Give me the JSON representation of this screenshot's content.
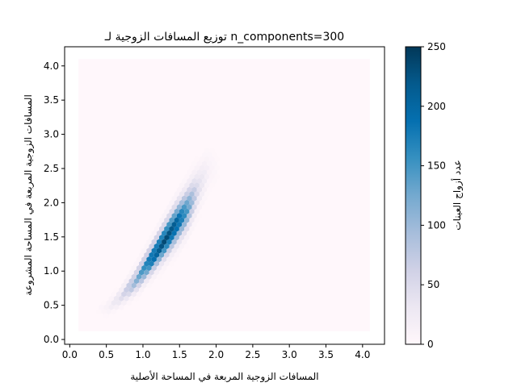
{
  "chart_data": {
    "type": "heatmap",
    "subtype": "hexbin",
    "title": "توزيع المسافات الزوجية لـ n_components=300",
    "xlabel": "المسافات الزوجية المربعة في المساحة الأصلية",
    "ylabel": "المسافات الزوجية المربعة في المساحة المشروعة",
    "xlim": [
      -0.07,
      4.3
    ],
    "ylim": [
      -0.07,
      4.28
    ],
    "x_ticks": [
      "0.0",
      "0.5",
      "1.0",
      "1.5",
      "2.0",
      "2.5",
      "3.0",
      "3.5",
      "4.0"
    ],
    "y_ticks": [
      "0.0",
      "0.5",
      "1.0",
      "1.5",
      "2.0",
      "2.5",
      "3.0",
      "3.5",
      "4.0"
    ],
    "data_extent": {
      "x": [
        0.12,
        4.1
      ],
      "y": [
        0.12,
        4.1
      ]
    },
    "density_ridge": [
      {
        "x": 0.5,
        "y_center": 0.45,
        "half_width": 0.1,
        "peak": 10
      },
      {
        "x": 0.7,
        "y_center": 0.62,
        "half_width": 0.13,
        "peak": 45
      },
      {
        "x": 0.9,
        "y_center": 0.85,
        "half_width": 0.17,
        "peak": 110
      },
      {
        "x": 1.1,
        "y_center": 1.15,
        "half_width": 0.21,
        "peak": 200
      },
      {
        "x": 1.3,
        "y_center": 1.45,
        "half_width": 0.26,
        "peak": 235
      },
      {
        "x": 1.45,
        "y_center": 1.68,
        "half_width": 0.3,
        "peak": 215
      },
      {
        "x": 1.6,
        "y_center": 1.9,
        "half_width": 0.32,
        "peak": 150
      },
      {
        "x": 1.75,
        "y_center": 2.2,
        "half_width": 0.32,
        "peak": 45
      },
      {
        "x": 1.9,
        "y_center": 2.5,
        "half_width": 0.3,
        "peak": 10
      }
    ],
    "colorbar": {
      "label": "عدد أزواج العينات",
      "range": [
        0,
        250
      ],
      "ticks": [
        "0",
        "50",
        "100",
        "150",
        "200",
        "250"
      ],
      "colormap": "PuBu",
      "colors": [
        "#fff7fb",
        "#ece7f2",
        "#d0d1e6",
        "#a6bddb",
        "#74a9cf",
        "#3690c0",
        "#0570b0",
        "#045a8d",
        "#023858"
      ]
    }
  }
}
